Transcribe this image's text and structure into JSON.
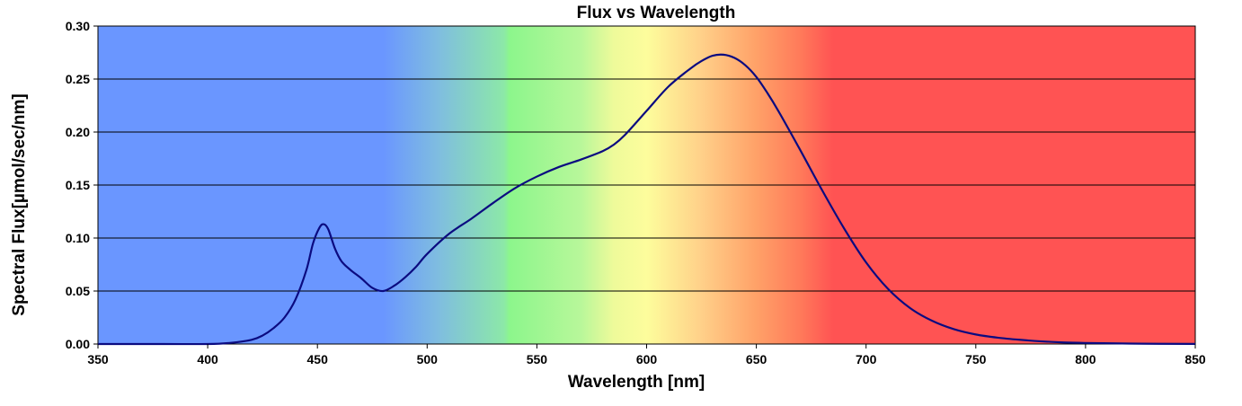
{
  "chart_data": {
    "type": "line",
    "title": "Flux vs Wavelength",
    "xlabel": "Wavelength [nm]",
    "ylabel": "Spectral Flux[µmol/sec/nm]",
    "xlim": [
      350,
      850
    ],
    "ylim": [
      0,
      0.3
    ],
    "xticks": [
      "350",
      "400",
      "450",
      "500",
      "550",
      "600",
      "650",
      "700",
      "750",
      "800",
      "850"
    ],
    "yticks": [
      "0.00",
      "0.05",
      "0.10",
      "0.15",
      "0.20",
      "0.25",
      "0.30"
    ],
    "grid": "horizontal",
    "background": "visible-spectrum gradient",
    "line_color": "#0b0b80",
    "series": [
      {
        "x": [
          350,
          380,
          400,
          410,
          420,
          425,
          430,
          435,
          440,
          445,
          448,
          451,
          453,
          455,
          458,
          461,
          465,
          470,
          475,
          480,
          485,
          490,
          495,
          500,
          510,
          520,
          530,
          540,
          550,
          560,
          570,
          580,
          585,
          590,
          600,
          610,
          620,
          625,
          630,
          635,
          640,
          645,
          650,
          655,
          660,
          670,
          680,
          690,
          700,
          710,
          720,
          730,
          740,
          750,
          760,
          770,
          780,
          790,
          800,
          820,
          850
        ],
        "y": [
          0.0,
          0.0,
          0.0,
          0.001,
          0.004,
          0.008,
          0.015,
          0.025,
          0.042,
          0.07,
          0.095,
          0.11,
          0.113,
          0.108,
          0.09,
          0.078,
          0.07,
          0.062,
          0.053,
          0.05,
          0.055,
          0.063,
          0.073,
          0.085,
          0.104,
          0.118,
          0.133,
          0.147,
          0.158,
          0.167,
          0.174,
          0.182,
          0.188,
          0.197,
          0.22,
          0.243,
          0.26,
          0.267,
          0.272,
          0.273,
          0.27,
          0.263,
          0.252,
          0.237,
          0.22,
          0.183,
          0.145,
          0.109,
          0.077,
          0.052,
          0.034,
          0.022,
          0.014,
          0.009,
          0.006,
          0.004,
          0.0025,
          0.0015,
          0.001,
          0.0004,
          0.0001
        ]
      }
    ]
  }
}
